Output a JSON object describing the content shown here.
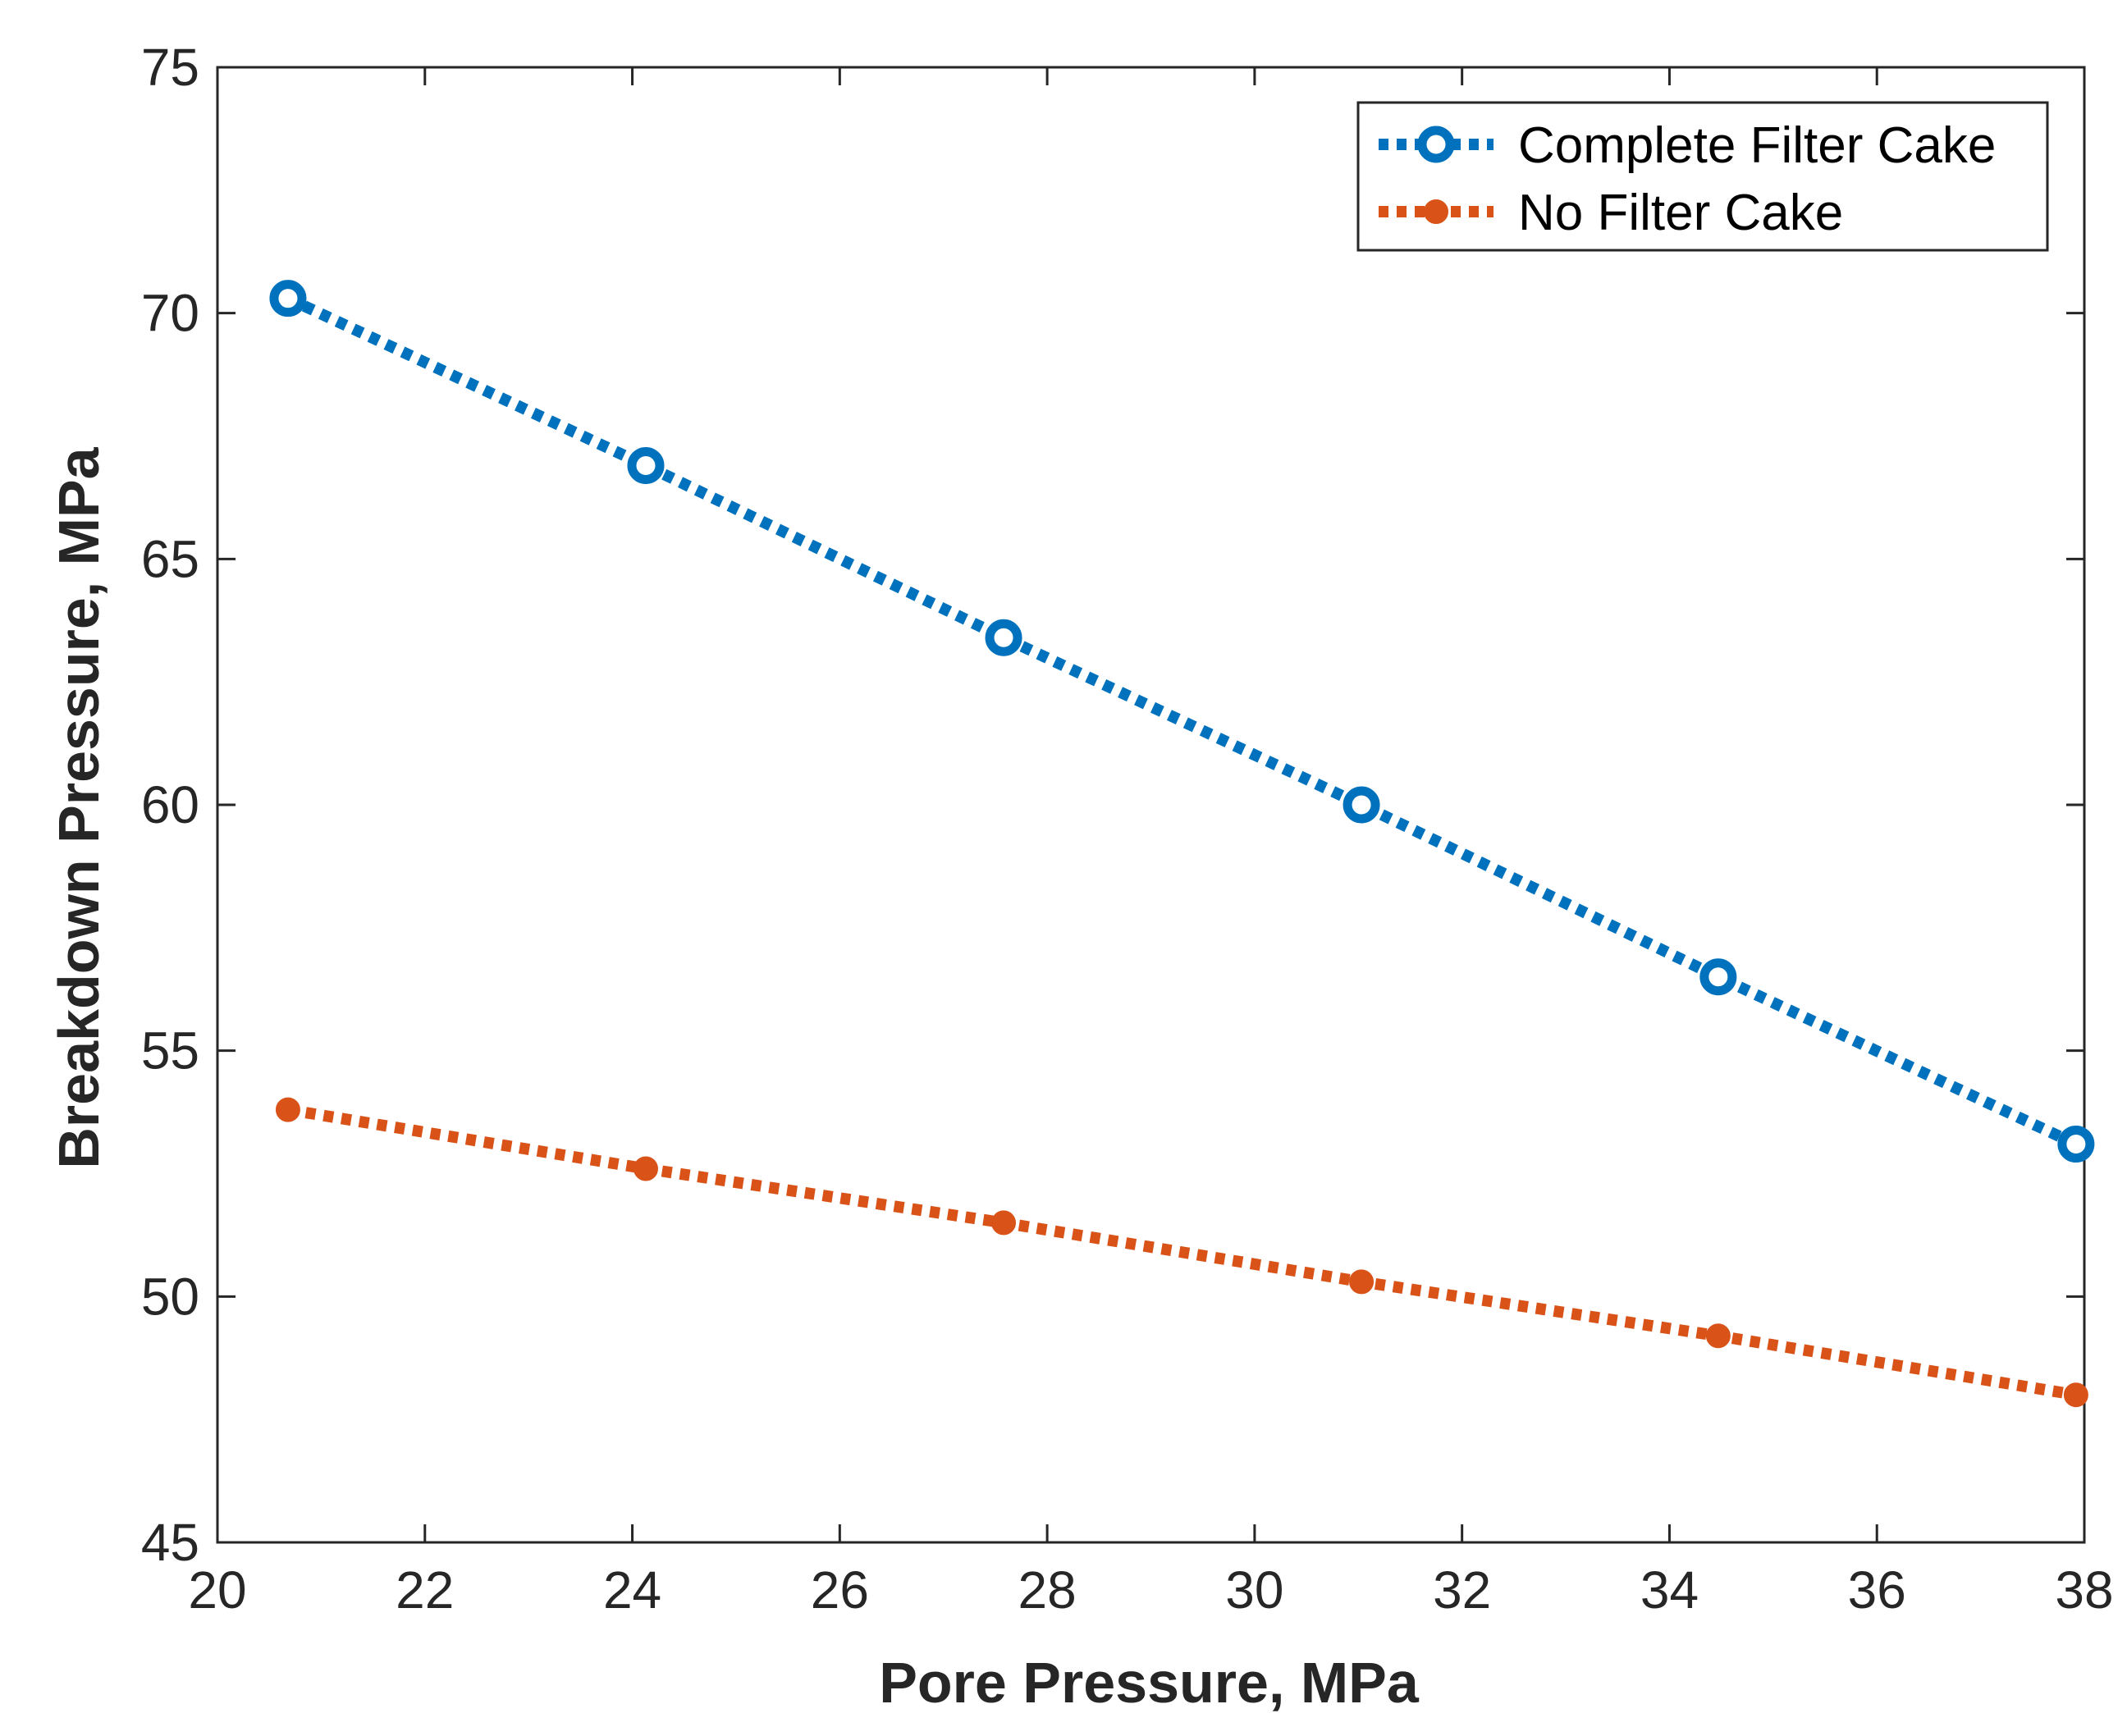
{
  "chart_data": {
    "type": "line",
    "title": "",
    "xlabel": "Pore Pressure, MPa",
    "ylabel": "Breakdown Pressure, MPa",
    "xlim": [
      20,
      38
    ],
    "ylim": [
      45,
      75
    ],
    "xticks": [
      20,
      22,
      24,
      26,
      28,
      30,
      32,
      34,
      36,
      38
    ],
    "yticks": [
      45,
      50,
      55,
      60,
      65,
      70,
      75
    ],
    "grid": false,
    "legend_position": "top-right",
    "series": [
      {
        "name": "Complete Filter Cake",
        "color": "#0072BD",
        "marker": "open-circle",
        "line_style": "dotted",
        "x": [
          20.68,
          24.13,
          27.58,
          31.03,
          34.47,
          37.92
        ],
        "y": [
          70.3,
          66.9,
          63.4,
          60.0,
          56.5,
          53.1
        ]
      },
      {
        "name": "No Filter Cake",
        "color": "#D95319",
        "marker": "filled-circle",
        "line_style": "dotted",
        "x": [
          20.68,
          24.13,
          27.58,
          31.03,
          34.47,
          37.92
        ],
        "y": [
          53.8,
          52.6,
          51.5,
          50.3,
          49.2,
          48.0
        ]
      }
    ]
  }
}
